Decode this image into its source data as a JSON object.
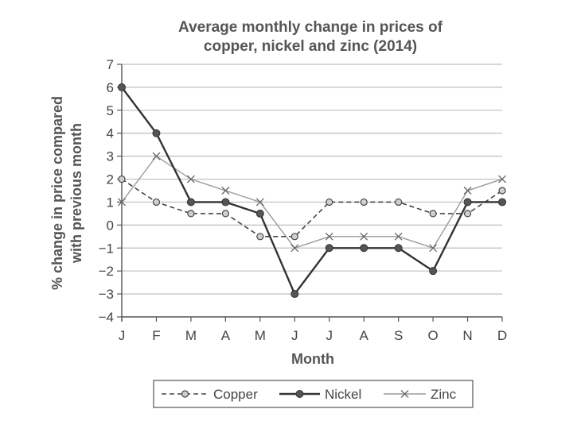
{
  "chart_data": {
    "type": "line",
    "title_line1": "Average monthly change in prices of",
    "title_line2": "copper, nickel and zinc (2014)",
    "xlabel": "Month",
    "ylabel_line1": "% change in price compared",
    "ylabel_line2": "with previous month",
    "categories": [
      "J",
      "F",
      "M",
      "A",
      "M",
      "J",
      "J",
      "A",
      "S",
      "O",
      "N",
      "D"
    ],
    "ylim": [
      -4,
      7
    ],
    "yticks": [
      "7",
      "6",
      "5",
      "4",
      "3",
      "2",
      "1",
      "0",
      "−1",
      "−2",
      "−3",
      "−4"
    ],
    "grid": true,
    "legend_position": "bottom",
    "series": [
      {
        "name": "Copper",
        "style": "dashed-circle",
        "color": "#444444",
        "values": [
          2,
          1,
          0.5,
          0.5,
          -0.5,
          -0.5,
          1,
          1,
          1,
          0.5,
          0.5,
          1.5
        ]
      },
      {
        "name": "Nickel",
        "style": "solid-dot",
        "color": "#333333",
        "values": [
          6,
          4,
          1,
          1,
          0.5,
          -3,
          -1,
          -1,
          -1,
          -2,
          1,
          1
        ]
      },
      {
        "name": "Zinc",
        "style": "thin-cross",
        "color": "#999999",
        "values": [
          1,
          3,
          2,
          1.5,
          1,
          -1,
          -0.5,
          -0.5,
          -0.5,
          -1,
          1.5,
          2
        ]
      }
    ]
  }
}
